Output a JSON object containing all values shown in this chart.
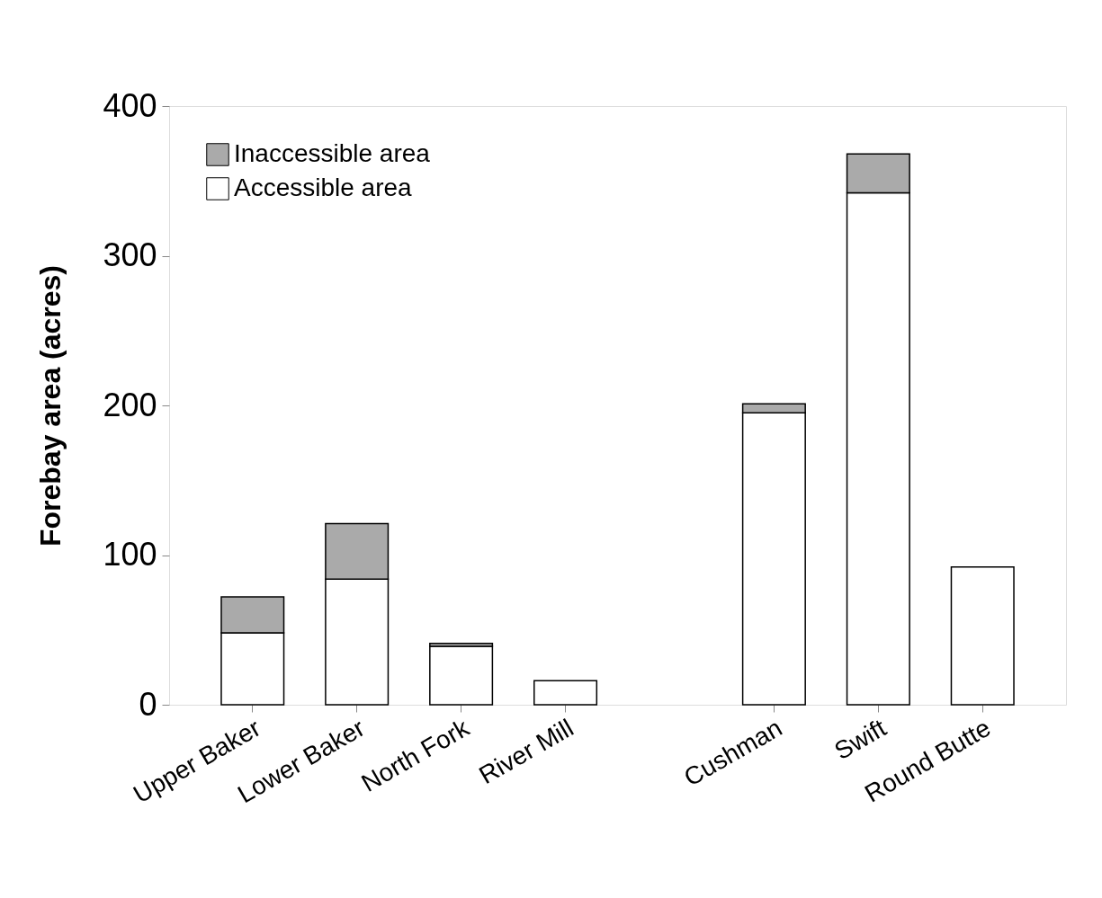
{
  "chart_data": {
    "type": "bar",
    "stacked": true,
    "ylabel": "Forebay area (acres)",
    "categories": [
      "Upper Baker",
      "Lower Baker",
      "North Fork",
      "River Mill",
      null,
      "Cushman",
      "Swift",
      "Round Butte"
    ],
    "series": [
      {
        "name": "Accessible area",
        "color": "#ffffff",
        "values": [
          48,
          84,
          39,
          16,
          null,
          195,
          342,
          92
        ]
      },
      {
        "name": "Inaccessible area",
        "color": "#aaaaaa",
        "values": [
          24,
          37,
          2,
          null,
          null,
          6,
          26,
          null
        ]
      }
    ],
    "ylim": [
      0,
      400
    ],
    "yticks": [
      0,
      100,
      200,
      300,
      400
    ],
    "grid": false,
    "legend": "top left"
  }
}
